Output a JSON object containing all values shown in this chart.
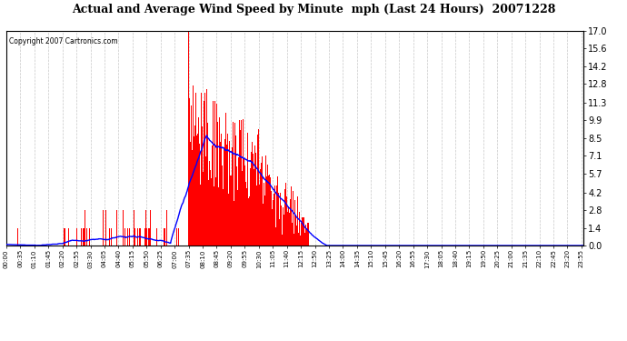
{
  "title": "Actual and Average Wind Speed by Minute  mph (Last 24 Hours)  20071228",
  "copyright": "Copyright 2007 Cartronics.com",
  "ylabel_right": [
    "0.0",
    "1.4",
    "2.8",
    "4.2",
    "5.7",
    "7.1",
    "8.5",
    "9.9",
    "11.3",
    "12.8",
    "14.2",
    "15.6",
    "17.0"
  ],
  "yticks": [
    0.0,
    1.4,
    2.8,
    4.2,
    5.7,
    7.1,
    8.5,
    9.9,
    11.3,
    12.8,
    14.2,
    15.6,
    17.0
  ],
  "ylim": [
    0.0,
    17.0
  ],
  "background_color": "#ffffff",
  "plot_bg_color": "#ffffff",
  "bar_color": "#ff0000",
  "line_color": "#0000ff",
  "grid_color": "#c8c8c8",
  "title_fontsize": 11,
  "n_minutes": 1440,
  "xtick_interval": 35
}
